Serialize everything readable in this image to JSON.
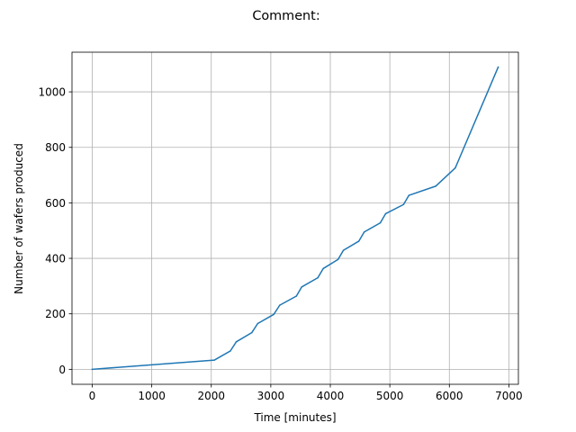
{
  "chart_data": {
    "type": "line",
    "title": "Comment:",
    "xlabel": "Time [minutes]",
    "ylabel": "Number of wafers produced",
    "xlim": [
      -340,
      7160
    ],
    "ylim": [
      -54,
      1143
    ],
    "xticks": [
      0,
      1000,
      2000,
      3000,
      4000,
      5000,
      6000,
      7000
    ],
    "xtick_labels": [
      "0",
      "1000",
      "2000",
      "3000",
      "4000",
      "5000",
      "6000",
      "7000"
    ],
    "yticks": [
      0,
      200,
      400,
      600,
      800,
      1000
    ],
    "ytick_labels": [
      "0",
      "200",
      "400",
      "600",
      "800",
      "1000"
    ],
    "grid": true,
    "line_color": "#1f77b4",
    "series": [
      {
        "x": [
          0,
          2050,
          2320,
          2420,
          2680,
          2780,
          3050,
          3150,
          3430,
          3520,
          3790,
          3880,
          4130,
          4220,
          4480,
          4570,
          4840,
          4930,
          5230,
          5320,
          5770,
          6100,
          6820
        ],
        "y": [
          0,
          33,
          66,
          99,
          132,
          165,
          198,
          231,
          264,
          297,
          330,
          363,
          396,
          429,
          462,
          495,
          528,
          561,
          594,
          627,
          660,
          726,
          1089
        ]
      }
    ]
  }
}
